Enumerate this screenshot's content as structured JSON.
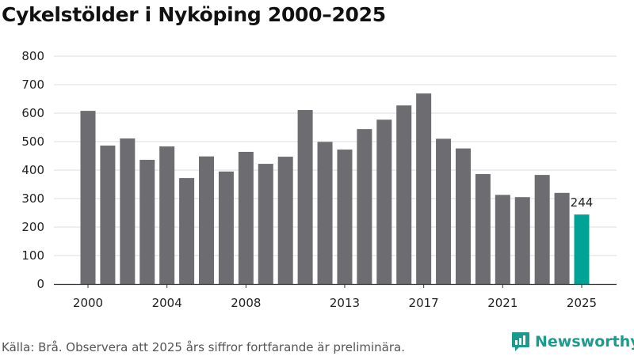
{
  "header": {
    "title": "Cykelstölder i Nyköping 2000–2025"
  },
  "footer": {
    "source": "Källa: Brå. Observera att 2025 års siffror fortfarande är preliminära.",
    "brand": "Newsworthy"
  },
  "colors": {
    "bar": "#6d6c71",
    "highlight": "#00a497",
    "grid": "#dddddd",
    "axis": "#333333",
    "brand": "#1a9b8e"
  },
  "chart_data": {
    "type": "bar",
    "title": "Cykelstölder i Nyköping 2000–2025",
    "xlabel": "",
    "ylabel": "",
    "categories": [
      "2000",
      "2001",
      "2002",
      "2003",
      "2004",
      "2005",
      "2006",
      "2007",
      "2008",
      "2009",
      "2010",
      "2011",
      "2012",
      "2013",
      "2014",
      "2015",
      "2016",
      "2017",
      "2018",
      "2019",
      "2020",
      "2021",
      "2022",
      "2023",
      "2024",
      "2025"
    ],
    "values": [
      608,
      486,
      511,
      436,
      483,
      372,
      448,
      395,
      464,
      422,
      447,
      611,
      499,
      472,
      544,
      577,
      627,
      669,
      510,
      476,
      386,
      313,
      305,
      383,
      320,
      244
    ],
    "highlight_category": "2025",
    "value_labels": [
      {
        "category": "2025",
        "text": "244"
      }
    ],
    "x_tick_labels": [
      "2000",
      "2004",
      "2008",
      "2013",
      "2017",
      "2021",
      "2025"
    ],
    "ylim": [
      0,
      800
    ],
    "y_ticks": [
      0,
      100,
      200,
      300,
      400,
      500,
      600,
      700,
      800
    ],
    "grid": true,
    "legend": "none"
  }
}
